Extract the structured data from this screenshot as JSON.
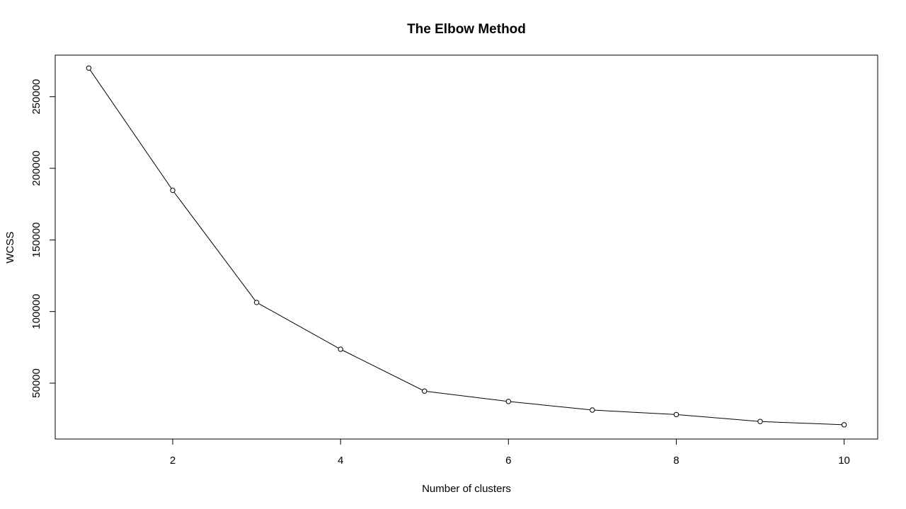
{
  "chart_data": {
    "type": "line",
    "title": "The Elbow Method",
    "xlabel": "Number of clusters",
    "ylabel": "WCSS",
    "x": [
      1,
      2,
      3,
      4,
      5,
      6,
      7,
      8,
      9,
      10
    ],
    "values": [
      269981,
      184610,
      106348,
      73679,
      44448,
      37239,
      31229,
      28081,
      23213,
      20943
    ],
    "xlim": [
      0.6,
      10.4
    ],
    "ylim": [
      11000,
      279000
    ],
    "xticks": [
      2,
      4,
      6,
      8,
      10
    ],
    "yticks": [
      50000,
      100000,
      150000,
      200000,
      250000
    ],
    "xtick_labels": [
      "2",
      "4",
      "6",
      "8",
      "10"
    ],
    "ytick_labels": [
      "50000",
      "100000",
      "150000",
      "200000",
      "250000"
    ],
    "marker": "open-circle",
    "grid": false,
    "legend": "none"
  }
}
